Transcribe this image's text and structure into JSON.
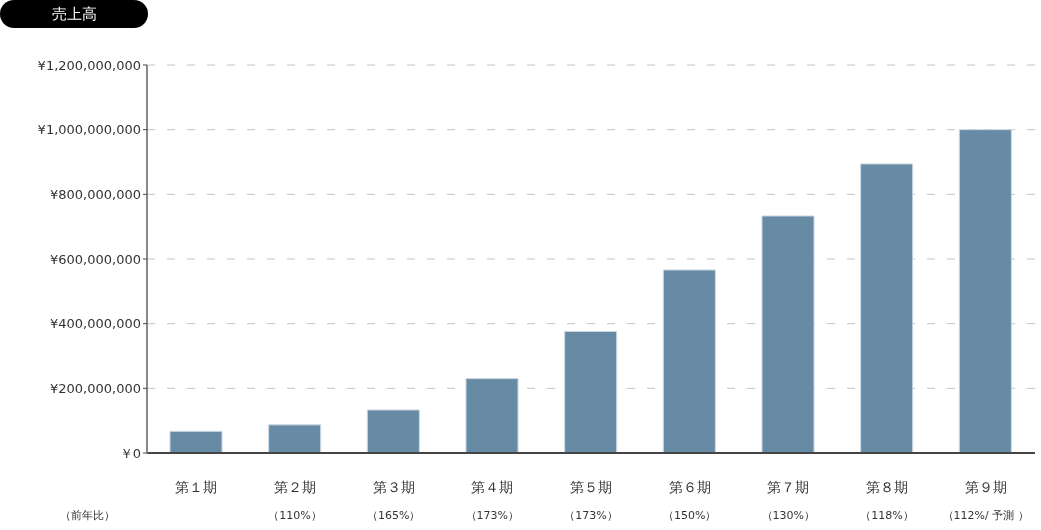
{
  "chart_data": {
    "type": "bar",
    "title": "売上高",
    "categories": [
      "第１期",
      "第２期",
      "第３期",
      "第４期",
      "第５期",
      "第６期",
      "第７期",
      "第８期",
      "第９期"
    ],
    "values": [
      67000000,
      87000000,
      133000000,
      230000000,
      376000000,
      566000000,
      733000000,
      894000000,
      1000000000
    ],
    "color": "#678ba5",
    "ylim": [
      0,
      1200000000
    ],
    "yticks": [
      {
        "value": 0,
        "label": "￥0"
      },
      {
        "value": 200000000,
        "label": "¥200,000,000"
      },
      {
        "value": 400000000,
        "label": "¥400,000,000"
      },
      {
        "value": 600000000,
        "label": "¥600,000,000"
      },
      {
        "value": 800000000,
        "label": "¥800,000,000"
      },
      {
        "value": 1000000000,
        "label": "¥1,000,000,000"
      },
      {
        "value": 1200000000,
        "label": "¥1,200,000,000"
      }
    ],
    "grid": "y",
    "annotations": [
      "（前年比）",
      "（110%）",
      "（165%）",
      "（173%）",
      "（173%）",
      "（150%）",
      "（130%）",
      "（118%）",
      "（112%/ 予測 ）"
    ]
  }
}
